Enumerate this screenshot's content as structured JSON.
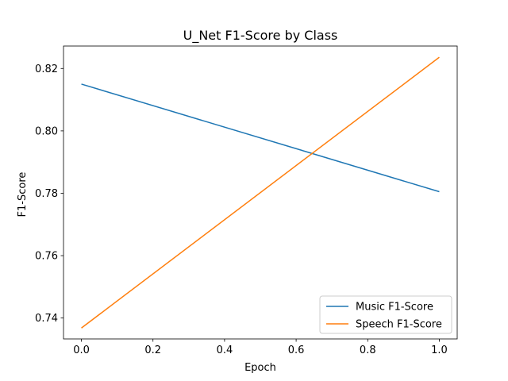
{
  "chart_data": {
    "type": "line",
    "title": "U_Net F1-Score by Class",
    "xlabel": "Epoch",
    "ylabel": "F1-Score",
    "xlim": [
      -0.05,
      1.05
    ],
    "ylim": [
      0.7333,
      0.8272
    ],
    "x_ticks": [
      "0.0",
      "0.2",
      "0.4",
      "0.6",
      "0.8",
      "1.0"
    ],
    "y_ticks": [
      "0.74",
      "0.76",
      "0.78",
      "0.80",
      "0.82"
    ],
    "grid": false,
    "legend_position": "lower right",
    "x": [
      0.0,
      1.0
    ],
    "series": [
      {
        "name": "Music F1-Score",
        "values": [
          0.815,
          0.7805
        ],
        "color": "#1f77b4"
      },
      {
        "name": "Speech F1-Score",
        "values": [
          0.7368,
          0.8236
        ],
        "color": "#ff7f0e"
      }
    ]
  }
}
